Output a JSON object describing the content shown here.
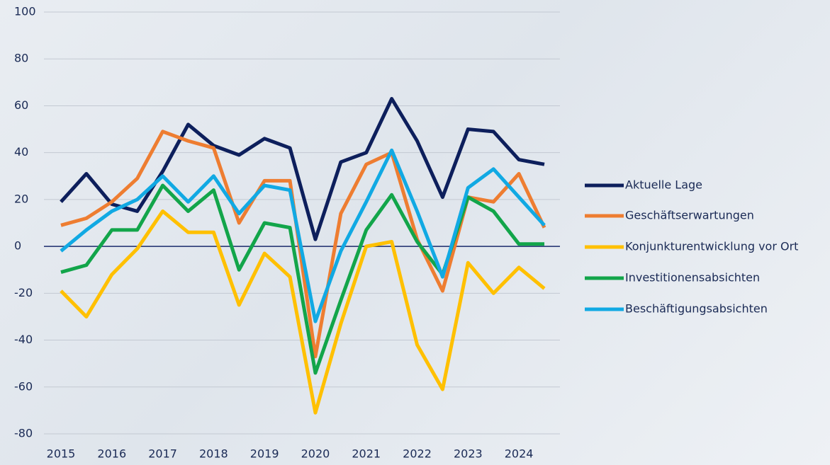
{
  "chart_data": {
    "type": "line",
    "x": [
      2015,
      2015.5,
      2016,
      2016.5,
      2017,
      2017.5,
      2018,
      2018.5,
      2019,
      2019.5,
      2020,
      2020.5,
      2021,
      2021.5,
      2022,
      2022.5,
      2023,
      2023.5,
      2024,
      2024.5
    ],
    "series": [
      {
        "name": "Aktuelle Lage",
        "color": "#0d1f5c",
        "values": [
          19,
          31,
          18,
          15,
          32,
          52,
          43,
          39,
          46,
          42,
          3,
          36,
          40,
          63,
          45,
          21,
          50,
          49,
          37,
          35
        ]
      },
      {
        "name": "Geschäftserwartungen",
        "color": "#ee7d31",
        "values": [
          9,
          12,
          19,
          29,
          49,
          45,
          42,
          10,
          28,
          28,
          -47,
          14,
          35,
          40,
          3,
          -19,
          21,
          19,
          31,
          8
        ]
      },
      {
        "name": "Konjunkturentwicklung vor Ort",
        "color": "#ffc000",
        "values": [
          -19,
          -30,
          -12,
          -1,
          15,
          6,
          6,
          -25,
          -3,
          -13,
          -71,
          -33,
          0,
          2,
          -42,
          -61,
          -7,
          -20,
          -9,
          -18
        ]
      },
      {
        "name": "Investitionensabsichten",
        "color": "#12a54a",
        "values": [
          -11,
          -8,
          7,
          7,
          26,
          15,
          24,
          -10,
          10,
          8,
          -54,
          -23,
          7,
          22,
          2,
          -12,
          21,
          15,
          1,
          1
        ]
      },
      {
        "name": "Beschäftigungsabsichten",
        "color": "#11a9e3",
        "values": [
          -2,
          7,
          15,
          20,
          30,
          19,
          30,
          14,
          26,
          24,
          -32,
          -2,
          19,
          41,
          15,
          -13,
          25,
          33,
          21,
          9
        ]
      }
    ],
    "xlim": [
      2015,
      2024.5
    ],
    "xticks": [
      2015,
      2016,
      2017,
      2018,
      2019,
      2020,
      2021,
      2022,
      2023,
      2024
    ],
    "ylim": [
      -80,
      100
    ],
    "yticks": [
      -80,
      -60,
      -40,
      -20,
      0,
      20,
      40,
      60,
      80,
      100
    ],
    "grid": true,
    "legend": "right"
  }
}
